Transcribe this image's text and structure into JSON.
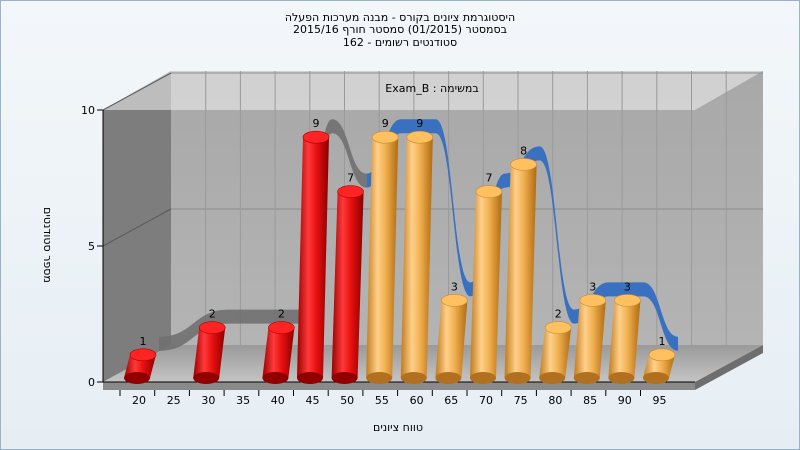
{
  "header": {
    "title_line1": "היסטוגרמת ציונים בקורס - מבנה מערכות הפעלה",
    "title_line2": "בסמסטר (01/2015) סמסטר חורף 2015/16",
    "title_line3": "162 - סטודנטים רשומים"
  },
  "chart_data": {
    "type": "bar",
    "title": "היסטוגרמת ציונים בקורס - מבנה מערכות הפעלה",
    "subtitle": "בסמסטר (01/2015) סמסטר חורף 2015/16 | 162 - סטודנטים רשומים",
    "xlabel": "טווח ציונים",
    "ylabel": "מספר סטודנטים",
    "legend_label": "Exam_B : במשימה",
    "x_tick_labels": [
      "20",
      "25",
      "30",
      "35",
      "40",
      "45",
      "50",
      "55",
      "60",
      "65",
      "70",
      "75",
      "80",
      "85",
      "90",
      "95"
    ],
    "y_ticks": [
      0,
      5,
      10
    ],
    "ylim": [
      0,
      10
    ],
    "grid": true,
    "bars": [
      {
        "x": 20,
        "value": 1,
        "color": "#e01010"
      },
      {
        "x": 30,
        "value": 2,
        "color": "#e01010"
      },
      {
        "x": 40,
        "value": 2,
        "color": "#e01010"
      },
      {
        "x": 45,
        "value": 9,
        "color": "#e01010"
      },
      {
        "x": 50,
        "value": 7,
        "color": "#e01010"
      },
      {
        "x": 55,
        "value": 9,
        "color": "#e8a850"
      },
      {
        "x": 60,
        "value": 9,
        "color": "#e8a850"
      },
      {
        "x": 65,
        "value": 3,
        "color": "#e8a850"
      },
      {
        "x": 70,
        "value": 7,
        "color": "#e8a850"
      },
      {
        "x": 75,
        "value": 8,
        "color": "#e8a850"
      },
      {
        "x": 80,
        "value": 2,
        "color": "#e8a850"
      },
      {
        "x": 85,
        "value": 3,
        "color": "#e8a850"
      },
      {
        "x": 90,
        "value": 3,
        "color": "#e8a850"
      },
      {
        "x": 95,
        "value": 1,
        "color": "#e8a850"
      }
    ],
    "ribbon_color_fail": "#707070",
    "ribbon_color_pass": "#3a70c0"
  }
}
